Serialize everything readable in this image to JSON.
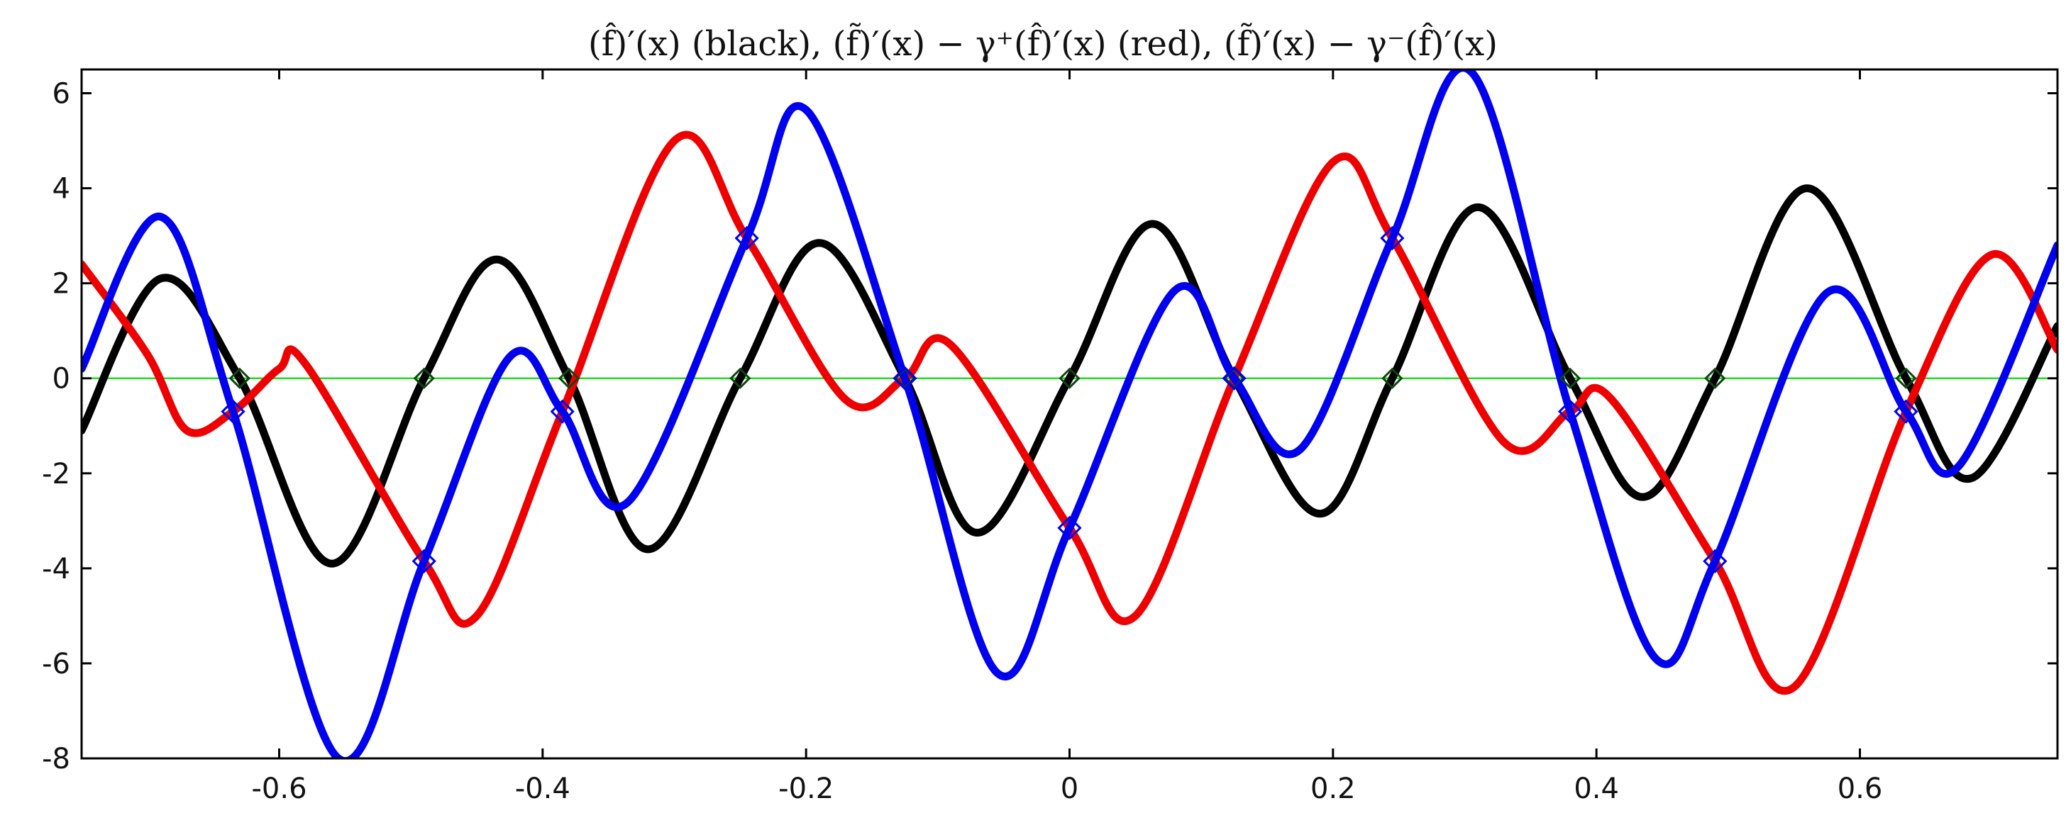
{
  "chart_data": {
    "type": "line",
    "title": "(f̂)′(x) (black), (f̃)′(x) − γ⁺(f̂)′(x) (red), (f̃)′(x) − γ⁻(f̂)′(x)",
    "xlabel": "",
    "ylabel": "",
    "xlim": [
      -0.75,
      0.75
    ],
    "ylim": [
      -8,
      6.5
    ],
    "xticks": [
      -0.6,
      -0.4,
      -0.2,
      0,
      0.2,
      0.4,
      0.6
    ],
    "xtick_labels": [
      "-0.6",
      "-0.4",
      "-0.2",
      "0",
      "0.2",
      "0.4",
      "0.6"
    ],
    "yticks": [
      -8,
      -6,
      -4,
      -2,
      0,
      2,
      4,
      6
    ],
    "ytick_labels": [
      "-8",
      "-6",
      "-4",
      "-2",
      "0",
      "2",
      "4",
      "6"
    ],
    "grid": false,
    "legend": "none",
    "baseline": {
      "y": 0,
      "color": "#22dd22"
    },
    "series": [
      {
        "color": "#000000",
        "points": [
          [
            -0.75,
            -1.1
          ],
          [
            -0.69,
            2.1
          ],
          [
            -0.63,
            0
          ],
          [
            -0.56,
            -3.9
          ],
          [
            -0.49,
            0
          ],
          [
            -0.435,
            2.5
          ],
          [
            -0.38,
            0
          ],
          [
            -0.32,
            -3.6
          ],
          [
            -0.25,
            0
          ],
          [
            -0.19,
            2.85
          ],
          [
            -0.125,
            0
          ],
          [
            -0.07,
            -3.25
          ],
          [
            0,
            0
          ],
          [
            0.063,
            3.25
          ],
          [
            0.125,
            0
          ],
          [
            0.19,
            -2.85
          ],
          [
            0.245,
            0
          ],
          [
            0.31,
            3.6
          ],
          [
            0.38,
            0
          ],
          [
            0.435,
            -2.5
          ],
          [
            0.49,
            0
          ],
          [
            0.56,
            4.0
          ],
          [
            0.635,
            0
          ],
          [
            0.685,
            -2.1
          ],
          [
            0.75,
            1.1
          ]
        ]
      },
      {
        "color": "#ee0000",
        "points": [
          [
            -0.75,
            2.4
          ],
          [
            -0.7,
            0.5
          ],
          [
            -0.67,
            -1.1
          ],
          [
            -0.635,
            -0.7
          ],
          [
            -0.6,
            0.2
          ],
          [
            -0.58,
            0.3
          ],
          [
            -0.49,
            -3.85
          ],
          [
            -0.45,
            -5.0
          ],
          [
            -0.385,
            -0.7
          ],
          [
            -0.3,
            5.0
          ],
          [
            -0.245,
            2.95
          ],
          [
            -0.17,
            -0.45
          ],
          [
            -0.125,
            0
          ],
          [
            -0.09,
            0.7
          ],
          [
            0,
            -3.15
          ],
          [
            0.05,
            -5.0
          ],
          [
            0.125,
            0
          ],
          [
            0.2,
            4.55
          ],
          [
            0.245,
            2.95
          ],
          [
            0.33,
            -1.35
          ],
          [
            0.38,
            -0.7
          ],
          [
            0.41,
            -0.4
          ],
          [
            0.49,
            -3.85
          ],
          [
            0.55,
            -6.5
          ],
          [
            0.635,
            -0.7
          ],
          [
            0.7,
            2.6
          ],
          [
            0.75,
            0.6
          ]
        ]
      },
      {
        "color": "#0000ee",
        "points": [
          [
            -0.75,
            0.2
          ],
          [
            -0.69,
            3.4
          ],
          [
            -0.635,
            -0.7
          ],
          [
            -0.555,
            -8.0
          ],
          [
            -0.49,
            -3.85
          ],
          [
            -0.425,
            0.45
          ],
          [
            -0.385,
            -0.7
          ],
          [
            -0.335,
            -2.6
          ],
          [
            -0.245,
            2.95
          ],
          [
            -0.2,
            5.65
          ],
          [
            -0.125,
            0
          ],
          [
            -0.055,
            -6.2
          ],
          [
            0,
            -3.15
          ],
          [
            0.08,
            1.85
          ],
          [
            0.125,
            0
          ],
          [
            0.175,
            -1.5
          ],
          [
            0.245,
            2.95
          ],
          [
            0.305,
            6.45
          ],
          [
            0.38,
            -0.7
          ],
          [
            0.445,
            -5.9
          ],
          [
            0.49,
            -3.85
          ],
          [
            0.575,
            1.8
          ],
          [
            0.635,
            -0.7
          ],
          [
            0.675,
            -1.85
          ],
          [
            0.75,
            2.8
          ]
        ]
      }
    ],
    "markers": {
      "black_diamonds_x": [
        -0.63,
        -0.49,
        -0.38,
        -0.25,
        -0.125,
        0,
        0.125,
        0.245,
        0.38,
        0.49,
        0.635
      ],
      "blue_diamonds": [
        [
          -0.635,
          -0.7
        ],
        [
          -0.49,
          -3.85
        ],
        [
          -0.385,
          -0.7
        ],
        [
          -0.245,
          2.95
        ],
        [
          -0.125,
          0
        ],
        [
          0,
          -3.15
        ],
        [
          0.125,
          0
        ],
        [
          0.245,
          2.95
        ],
        [
          0.38,
          -0.7
        ],
        [
          0.49,
          -3.85
        ],
        [
          0.635,
          -0.7
        ]
      ]
    }
  }
}
